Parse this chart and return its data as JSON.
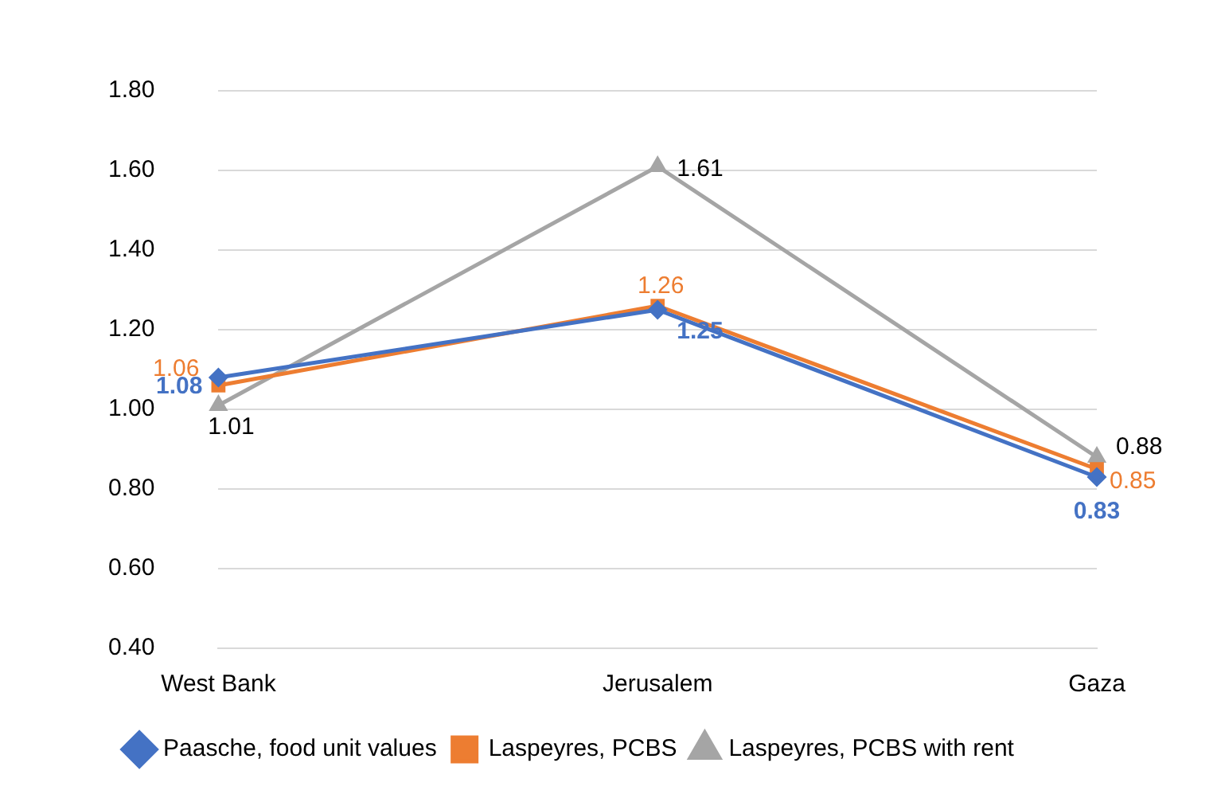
{
  "chart_data": {
    "type": "line",
    "categories": [
      "West Bank",
      "Jerusalem",
      "Gaza"
    ],
    "series": [
      {
        "name": "Paasche, food unit values",
        "color": "#4472c4",
        "marker": "diamond",
        "values": [
          1.08,
          1.25,
          0.83
        ]
      },
      {
        "name": "Laspeyres, PCBS",
        "color": "#ed7d31",
        "marker": "square",
        "values": [
          1.06,
          1.26,
          0.85
        ]
      },
      {
        "name": "Laspeyres, PCBS with rent",
        "color": "#a5a5a5",
        "marker": "triangle",
        "values": [
          1.01,
          1.61,
          0.88
        ]
      }
    ],
    "ylim": [
      0.4,
      1.8
    ],
    "yticks": [
      {
        "value": 0.4,
        "label": "0.40"
      },
      {
        "value": 0.6,
        "label": "0.60"
      },
      {
        "value": 0.8,
        "label": "0.80"
      },
      {
        "value": 1.0,
        "label": "1.00"
      },
      {
        "value": 1.2,
        "label": "1.20"
      },
      {
        "value": 1.4,
        "label": "1.40"
      },
      {
        "value": 1.6,
        "label": "1.60"
      },
      {
        "value": 1.8,
        "label": "1.80"
      }
    ],
    "grid": "y",
    "legend": "bottom",
    "data_labels": true,
    "line_style": "solid"
  }
}
